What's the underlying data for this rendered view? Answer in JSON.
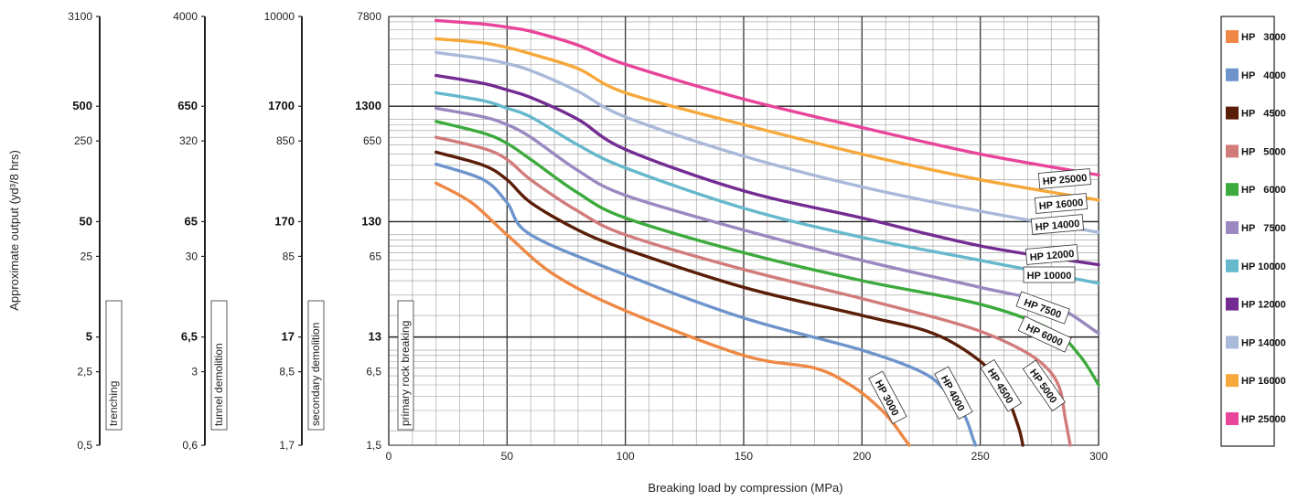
{
  "chart_data": {
    "type": "line",
    "xlabel": "Breaking load by compression (MPa)",
    "ylabel_main": "Approximate output (yd³/8 hrs)",
    "xlim": [
      0,
      300
    ],
    "x_ticks": [
      "0",
      "50",
      "100",
      "150",
      "200",
      "250",
      "300"
    ],
    "ylim": [
      1.5,
      7800
    ],
    "y_scale": "log",
    "y_ticks": [
      "7800",
      "1300",
      "650",
      "130",
      "65",
      "13",
      "6,5",
      "1,5"
    ],
    "y_ticks_bold": [
      "1300",
      "130",
      "13"
    ],
    "side_axes": [
      {
        "label": "trenching",
        "ticks": [
          "3100",
          "500",
          "250",
          "50",
          "25",
          "5",
          "2,5",
          "0,5"
        ]
      },
      {
        "label": "tunnel demolition",
        "ticks": [
          "4000",
          "650",
          "320",
          "65",
          "30",
          "6,5",
          "3",
          "0,6"
        ]
      },
      {
        "label": "secondary demolition",
        "ticks": [
          "10000",
          "1700",
          "850",
          "170",
          "85",
          "17",
          "8,5",
          "1,7"
        ]
      }
    ],
    "main_axis_label": "primary rock breaking",
    "series": [
      {
        "name": "HP   3000",
        "color": "#EE8844",
        "curve_label": "HP 3000",
        "x": [
          20,
          35,
          50,
          70,
          100,
          150,
          180,
          195,
          205,
          212,
          218,
          220
        ],
        "y": [
          280,
          190,
          100,
          45,
          22,
          9,
          7,
          5,
          3.5,
          2.5,
          1.7,
          1.5
        ]
      },
      {
        "name": "HP   4000",
        "color": "#6E94CC",
        "curve_label": "HP 4000",
        "x": [
          20,
          40,
          50,
          60,
          100,
          150,
          200,
          225,
          235,
          243,
          247,
          248
        ],
        "y": [
          410,
          300,
          190,
          100,
          45,
          19,
          10,
          6.5,
          4.5,
          2.8,
          1.7,
          1.5
        ]
      },
      {
        "name": "HP   4500",
        "color": "#5A1E08",
        "curve_label": "HP 4500",
        "x": [
          20,
          40,
          50,
          60,
          80,
          100,
          150,
          200,
          230,
          250,
          260,
          266,
          268
        ],
        "y": [
          520,
          400,
          300,
          190,
          110,
          75,
          35,
          20,
          14,
          8,
          4.5,
          2.2,
          1.5
        ]
      },
      {
        "name": "HP   5000",
        "color": "#D17B7B",
        "curve_label": "HP 5000",
        "x": [
          20,
          40,
          50,
          60,
          80,
          100,
          150,
          200,
          240,
          260,
          275,
          283,
          286,
          288
        ],
        "y": [
          700,
          560,
          450,
          300,
          160,
          100,
          50,
          28,
          17,
          12,
          8,
          5,
          2.5,
          1.5
        ]
      },
      {
        "name": "HP   6000",
        "color": "#3DAA3D",
        "curve_label": "HP 6000",
        "x": [
          20,
          40,
          50,
          60,
          80,
          100,
          150,
          200,
          250,
          280,
          292,
          300
        ],
        "y": [
          960,
          760,
          620,
          450,
          230,
          140,
          70,
          40,
          25,
          15,
          9,
          5
        ]
      },
      {
        "name": "HP   7500",
        "color": "#9A88C0",
        "curve_label": "HP 7500",
        "x": [
          20,
          40,
          50,
          60,
          80,
          100,
          150,
          200,
          250,
          280,
          300
        ],
        "y": [
          1250,
          1050,
          900,
          700,
          360,
          220,
          110,
          60,
          35,
          25,
          14
        ]
      },
      {
        "name": "HP 10000",
        "color": "#66B8CC",
        "curve_label": "HP 10000",
        "x": [
          20,
          40,
          50,
          60,
          80,
          100,
          150,
          200,
          250,
          300
        ],
        "y": [
          1700,
          1450,
          1250,
          1050,
          600,
          380,
          170,
          95,
          60,
          38
        ]
      },
      {
        "name": "HP 12000",
        "color": "#732C91",
        "curve_label": "HP 12000",
        "x": [
          20,
          40,
          50,
          60,
          80,
          100,
          150,
          200,
          250,
          300
        ],
        "y": [
          2400,
          2050,
          1800,
          1550,
          1000,
          550,
          240,
          140,
          80,
          55
        ]
      },
      {
        "name": "HP 14000",
        "color": "#A9B9DA",
        "curve_label": "HP 14000",
        "x": [
          20,
          40,
          50,
          60,
          80,
          100,
          150,
          200,
          250,
          300
        ],
        "y": [
          3800,
          3350,
          3050,
          2650,
          1750,
          1050,
          480,
          260,
          160,
          105
        ]
      },
      {
        "name": "HP 16000",
        "color": "#F7A83A",
        "curve_label": "HP 16000",
        "x": [
          20,
          40,
          50,
          60,
          80,
          100,
          150,
          200,
          250,
          300
        ],
        "y": [
          5000,
          4600,
          4200,
          3700,
          2750,
          1700,
          900,
          500,
          300,
          200
        ]
      },
      {
        "name": "HP 25000",
        "color": "#E8449A",
        "curve_label": "HP 25000",
        "x": [
          20,
          40,
          50,
          60,
          80,
          100,
          150,
          200,
          250,
          300
        ],
        "y": [
          7200,
          6700,
          6300,
          5800,
          4400,
          3000,
          1500,
          850,
          500,
          330
        ]
      }
    ],
    "legend_position": "right",
    "grid": true
  }
}
